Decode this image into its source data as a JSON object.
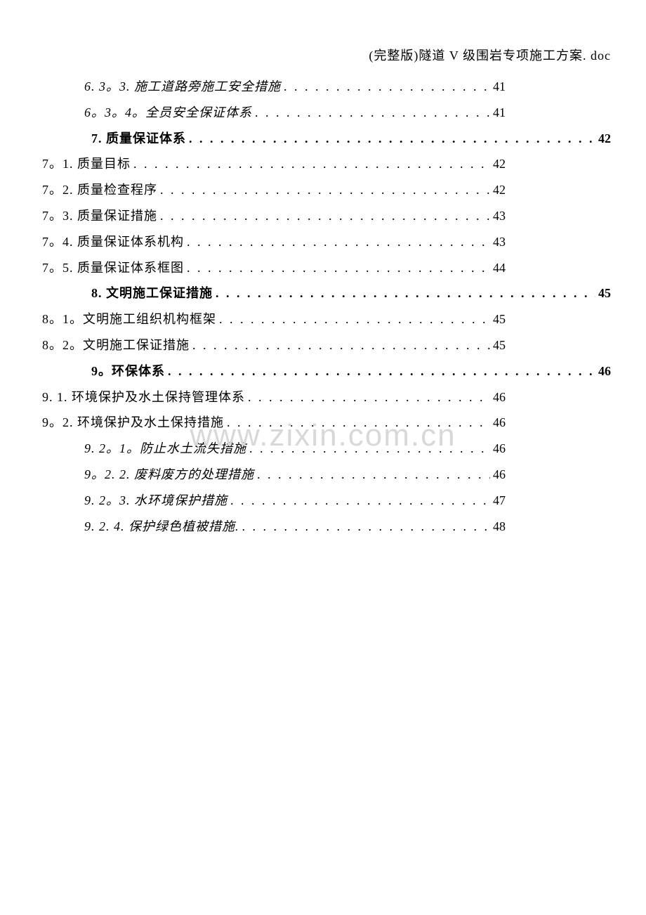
{
  "header": "(完整版)隧道 V 级围岩专项施工方案. doc",
  "watermark": "www.zixin.com.cn",
  "colors": {
    "text": "#000000",
    "watermark": "#d8d8d8",
    "background": "#ffffff"
  },
  "typography": {
    "body_fontsize_pt": 14,
    "watermark_fontsize_pt": 33
  },
  "toc": [
    {
      "label": "6. 3。3. 施工道路旁施工安全措施",
      "page": "41",
      "indent": 1,
      "italic": true,
      "bold": false,
      "width": "narrow"
    },
    {
      "label": "6。3。4。全员安全保证体系",
      "page": "41",
      "indent": 1,
      "italic": true,
      "bold": false,
      "width": "narrow"
    },
    {
      "label": "7. 质量保证体系",
      "page": "42",
      "indent": 2,
      "italic": false,
      "bold": true,
      "width": "wide"
    },
    {
      "label": "7。1. 质量目标",
      "page": "42",
      "indent": 0,
      "italic": false,
      "bold": false,
      "width": "narrow"
    },
    {
      "label": "7。2. 质量检查程序",
      "page": "42",
      "indent": 0,
      "italic": false,
      "bold": false,
      "width": "narrow"
    },
    {
      "label": "7。3. 质量保证措施",
      "page": "43",
      "indent": 0,
      "italic": false,
      "bold": false,
      "width": "narrow"
    },
    {
      "label": "7。4. 质量保证体系机构",
      "page": "43",
      "indent": 0,
      "italic": false,
      "bold": false,
      "width": "narrow"
    },
    {
      "label": "7。5. 质量保证体系框图",
      "page": "44",
      "indent": 0,
      "italic": false,
      "bold": false,
      "width": "narrow"
    },
    {
      "label": "8. 文明施工保证措施",
      "page": "45",
      "indent": 2,
      "italic": false,
      "bold": true,
      "width": "wide"
    },
    {
      "label": "8。1。文明施工组织机构框架",
      "page": "45",
      "indent": 0,
      "italic": false,
      "bold": false,
      "width": "narrow"
    },
    {
      "label": "8。2。文明施工保证措施",
      "page": "45",
      "indent": 0,
      "italic": false,
      "bold": false,
      "width": "narrow"
    },
    {
      "label": "9。环保体系",
      "page": "46",
      "indent": 2,
      "italic": false,
      "bold": true,
      "width": "wide"
    },
    {
      "label": "9. 1. 环境保护及水土保持管理体系",
      "page": "46",
      "indent": 0,
      "italic": false,
      "bold": false,
      "width": "narrow"
    },
    {
      "label": "9。2. 环境保护及水土保持措施",
      "page": "46",
      "indent": 0,
      "italic": false,
      "bold": false,
      "width": "narrow"
    },
    {
      "label": "9. 2。1。防止水土流失措施",
      "page": "46",
      "indent": 1,
      "italic": true,
      "bold": false,
      "width": "narrow"
    },
    {
      "label": "9。2. 2. 废料废方的处理措施",
      "page": "46",
      "indent": 1,
      "italic": true,
      "bold": false,
      "width": "narrow"
    },
    {
      "label": "9. 2。3. 水环境保护措施",
      "page": "47",
      "indent": 1,
      "italic": true,
      "bold": false,
      "width": "narrow"
    },
    {
      "label": "9. 2. 4. 保护绿色植被措施.",
      "page": "48",
      "indent": 1,
      "italic": true,
      "bold": false,
      "width": "narrow"
    }
  ]
}
